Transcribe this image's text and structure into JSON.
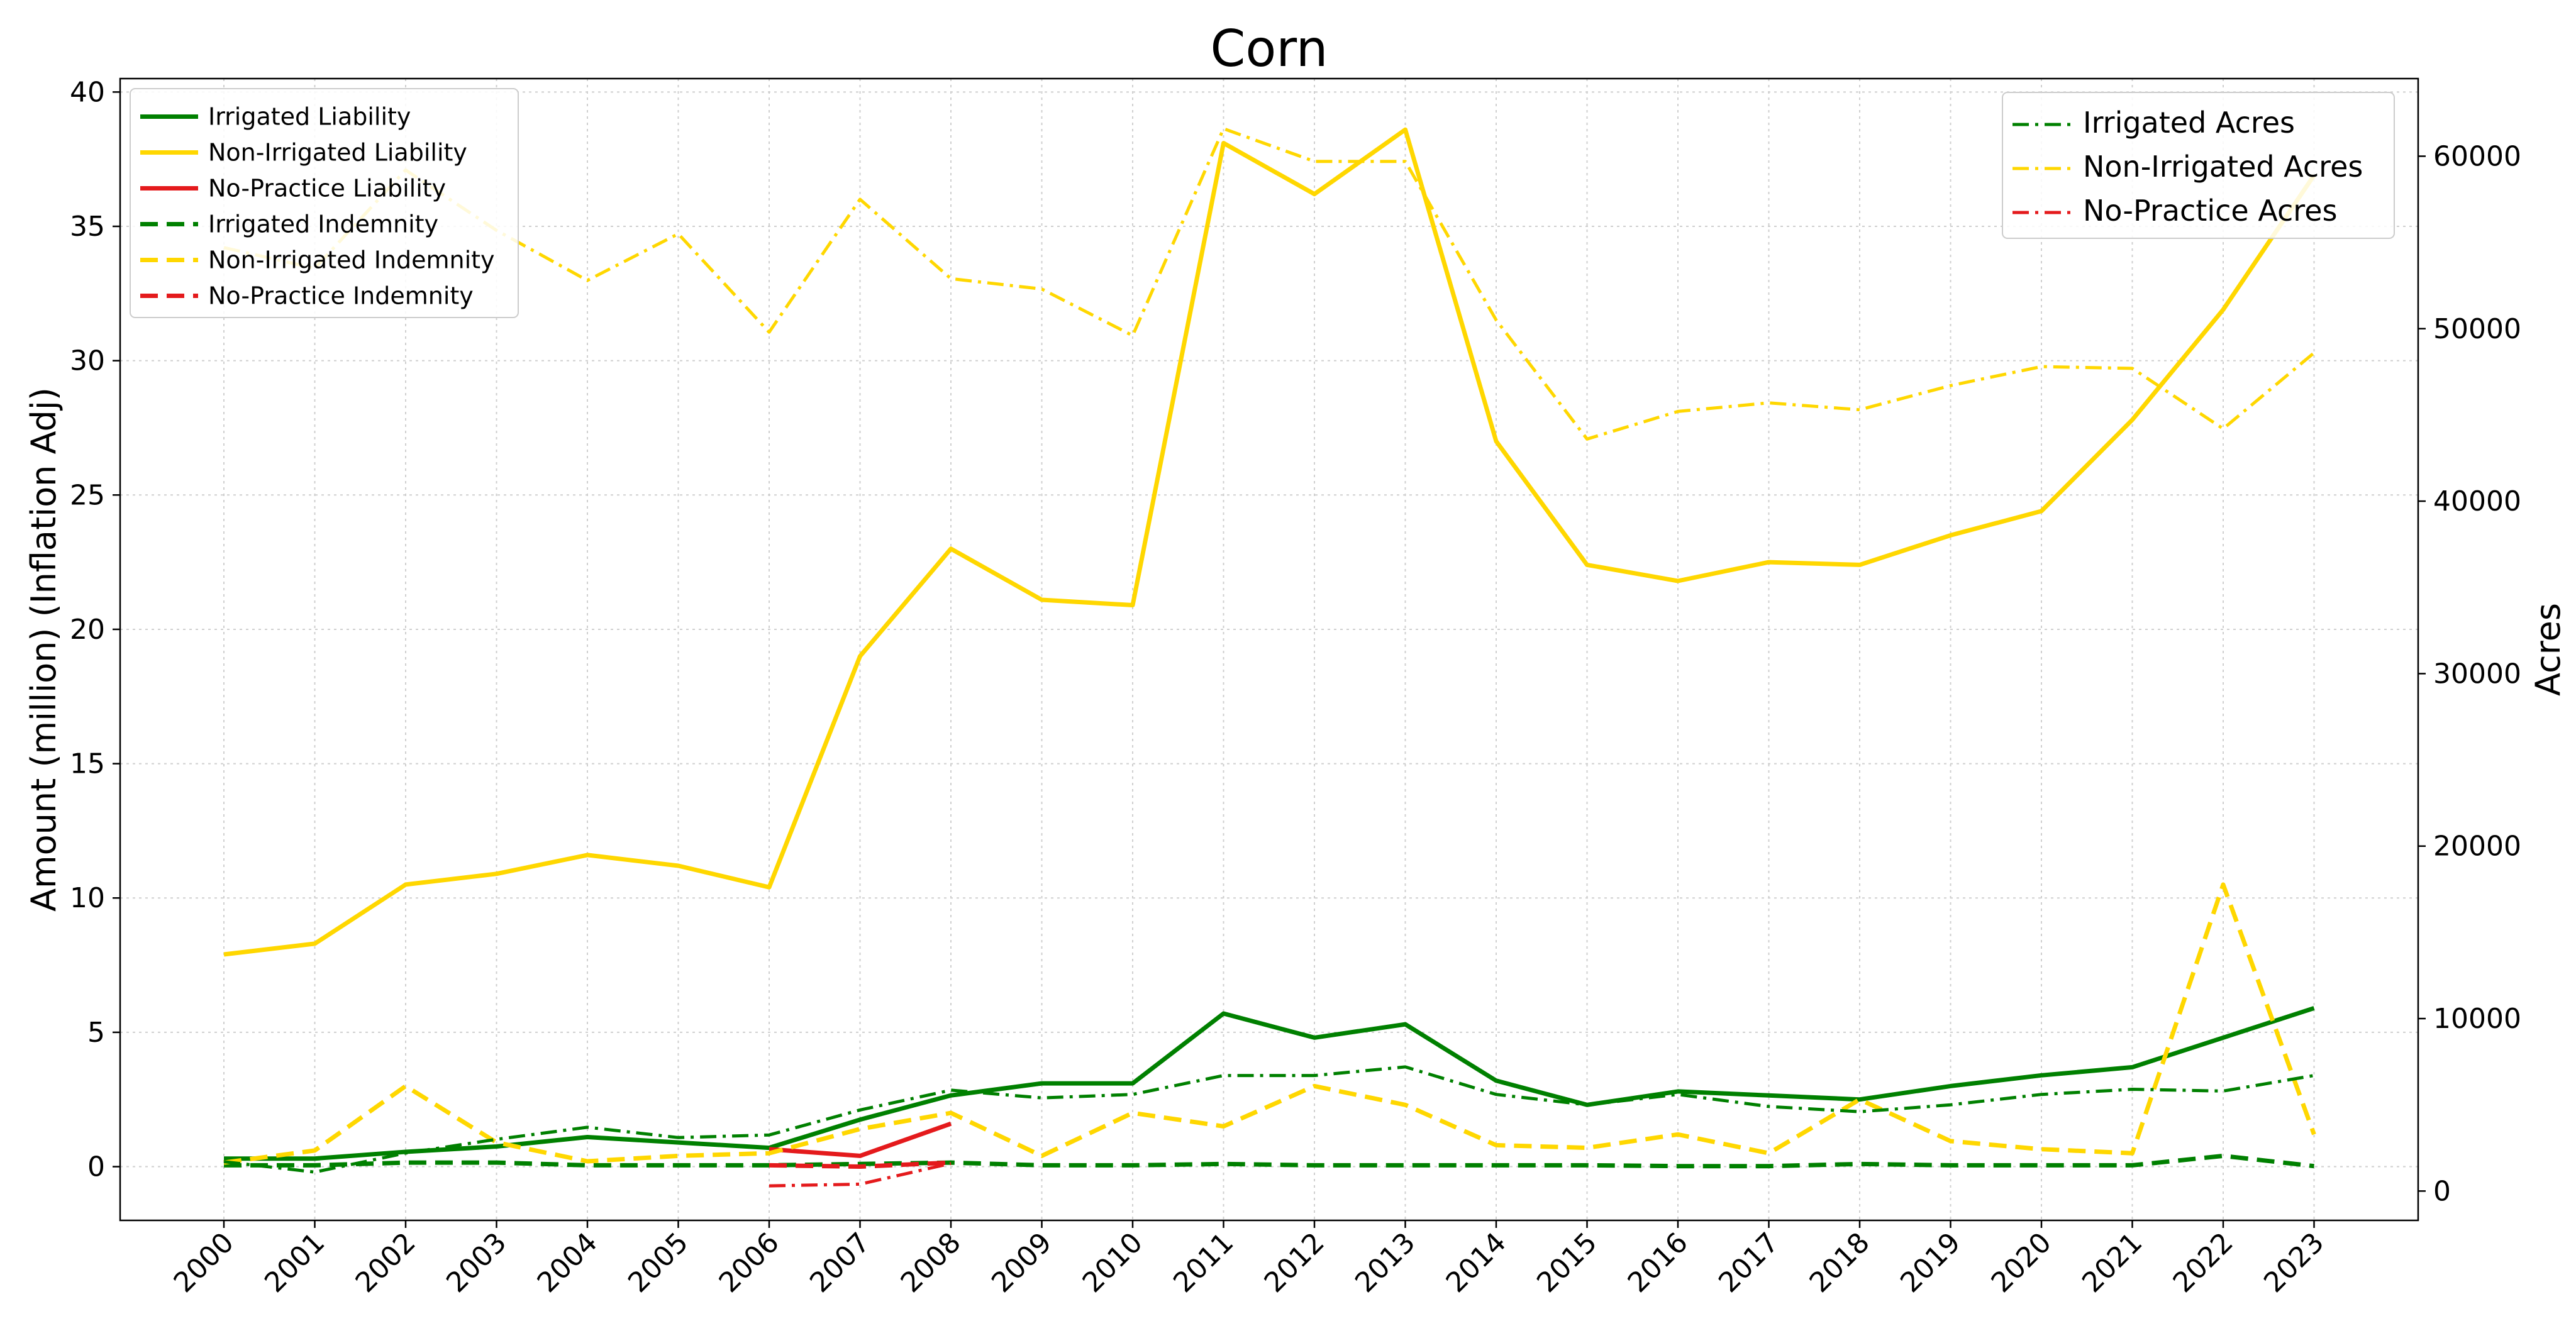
{
  "chart_data": {
    "type": "line",
    "title": "Corn",
    "xlabel": "",
    "ylabel": "Amount (million) (Inflation Adj)",
    "y2label": "Acres",
    "ylim": [
      -2,
      40.5
    ],
    "y2lim": [
      -1700,
      64500
    ],
    "grid": true,
    "categories": [
      "2000",
      "2001",
      "2002",
      "2003",
      "2004",
      "2005",
      "2006",
      "2007",
      "2008",
      "2009",
      "2010",
      "2011",
      "2012",
      "2013",
      "2014",
      "2015",
      "2016",
      "2017",
      "2018",
      "2019",
      "2020",
      "2021",
      "2022",
      "2023"
    ],
    "yticks": [
      "0",
      "5",
      "10",
      "15",
      "20",
      "25",
      "30",
      "35",
      "40"
    ],
    "y2ticks": [
      "0",
      "10000",
      "20000",
      "30000",
      "40000",
      "50000",
      "60000"
    ],
    "series": [
      {
        "name": "Irrigated Liability",
        "axis": "left",
        "color": "#008000",
        "style": "solid",
        "values": [
          0.3,
          0.3,
          0.55,
          0.75,
          1.1,
          0.9,
          0.7,
          1.75,
          2.65,
          3.1,
          3.1,
          5.7,
          4.8,
          5.3,
          3.2,
          2.3,
          2.8,
          2.65,
          2.5,
          3.0,
          3.4,
          3.7,
          4.8,
          5.9
        ]
      },
      {
        "name": "Non-Irrigated Liability",
        "axis": "left",
        "color": "#FFD700",
        "style": "solid",
        "values": [
          7.9,
          8.3,
          10.5,
          10.9,
          11.6,
          11.2,
          10.4,
          19.0,
          23.0,
          21.1,
          20.9,
          38.1,
          36.2,
          38.6,
          27.0,
          22.4,
          21.8,
          22.5,
          22.4,
          23.5,
          24.4,
          27.8,
          31.9,
          36.9
        ]
      },
      {
        "name": "No-Practice Liability",
        "axis": "left",
        "color": "#E41A1C",
        "style": "solid",
        "values": [
          null,
          null,
          null,
          null,
          null,
          null,
          0.65,
          0.4,
          1.6,
          null,
          null,
          null,
          null,
          null,
          null,
          null,
          null,
          null,
          null,
          null,
          null,
          null,
          null,
          null
        ]
      },
      {
        "name": "Irrigated Indemnity",
        "axis": "left",
        "color": "#008000",
        "style": "dashed",
        "values": [
          0.05,
          0.05,
          0.15,
          0.15,
          0.05,
          0.05,
          0.05,
          0.1,
          0.15,
          0.05,
          0.05,
          0.1,
          0.05,
          0.05,
          0.05,
          0.05,
          0.02,
          0.02,
          0.1,
          0.05,
          0.05,
          0.05,
          0.4,
          0.02
        ]
      },
      {
        "name": "Non-Irrigated Indemnity",
        "axis": "left",
        "color": "#FFD700",
        "style": "dashed",
        "values": [
          0.15,
          0.6,
          3.0,
          0.9,
          0.2,
          0.4,
          0.5,
          1.4,
          2.0,
          0.4,
          2.0,
          1.5,
          3.0,
          2.3,
          0.8,
          0.7,
          1.2,
          0.5,
          2.5,
          0.95,
          0.65,
          0.5,
          10.5,
          1.2
        ]
      },
      {
        "name": "No-Practice Indemnity",
        "axis": "left",
        "color": "#E41A1C",
        "style": "dashed",
        "values": [
          null,
          null,
          null,
          null,
          null,
          null,
          0.05,
          0.0,
          0.15,
          null,
          null,
          null,
          null,
          null,
          null,
          null,
          null,
          null,
          null,
          null,
          null,
          null,
          null,
          null
        ]
      },
      {
        "name": "Irrigated Acres",
        "axis": "right",
        "color": "#008000",
        "style": "dashdot",
        "values": [
          1700,
          1100,
          2200,
          3000,
          3700,
          3100,
          3250,
          4700,
          5850,
          5400,
          5600,
          6700,
          6700,
          7200,
          5600,
          5000,
          5600,
          4900,
          4600,
          5000,
          5600,
          5900,
          5800,
          6700
        ]
      },
      {
        "name": "Non-Irrigated Acres",
        "axis": "right",
        "color": "#FFD700",
        "style": "dashdot",
        "values": [
          54700,
          53500,
          59200,
          55700,
          52800,
          55500,
          49800,
          57500,
          52900,
          52300,
          49600,
          61600,
          59700,
          59700,
          50500,
          43600,
          45200,
          45700,
          45300,
          46700,
          47800,
          47700,
          44200,
          48600
        ]
      },
      {
        "name": "No-Practice Acres",
        "axis": "right",
        "color": "#E41A1C",
        "style": "dashdot",
        "values": [
          null,
          null,
          null,
          null,
          null,
          null,
          300,
          400,
          1600,
          null,
          null,
          null,
          null,
          null,
          null,
          null,
          null,
          null,
          null,
          null,
          null,
          null,
          null,
          null
        ]
      }
    ],
    "legend_left": [
      "Irrigated Liability",
      "Non-Irrigated Liability",
      "No-Practice Liability",
      "Irrigated Indemnity",
      "Non-Irrigated Indemnity",
      "No-Practice Indemnity"
    ],
    "legend_right": [
      "Irrigated Acres",
      "Non-Irrigated Acres",
      "No-Practice Acres"
    ],
    "legend_left_placement": "upper left",
    "legend_right_placement": "upper right"
  }
}
